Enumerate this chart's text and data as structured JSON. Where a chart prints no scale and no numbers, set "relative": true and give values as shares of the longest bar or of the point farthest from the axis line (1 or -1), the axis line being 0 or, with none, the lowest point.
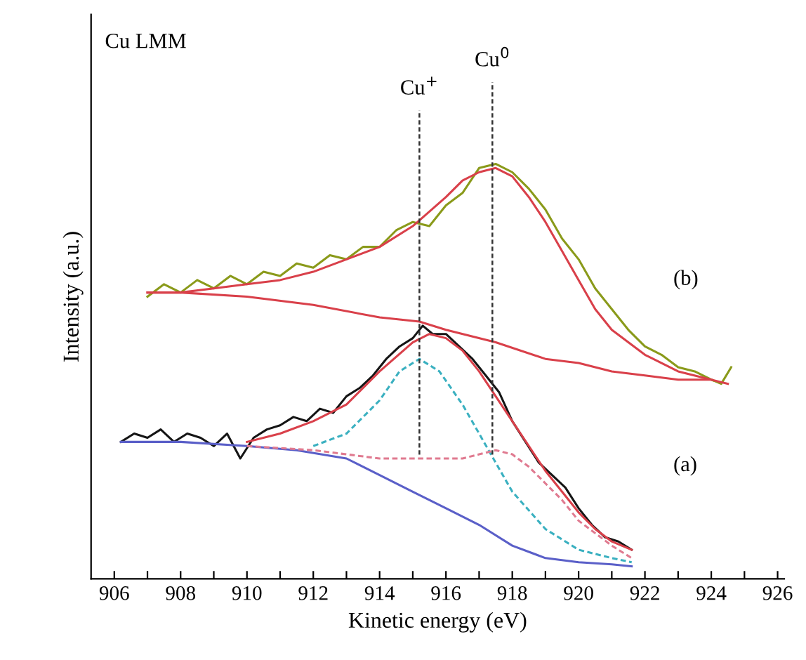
{
  "chart_data": {
    "type": "line",
    "relative": true,
    "xlabel": "Kinetic energy (eV)",
    "ylabel": "Intensity (a.u.)",
    "xlim": [
      905.3,
      926.2
    ],
    "xticks": [
      906,
      {
        "value": 907,
        "label": null
      },
      908,
      {
        "value": 909,
        "label": null
      },
      910,
      {
        "value": 911,
        "label": null
      },
      912,
      {
        "value": 913,
        "label": null
      },
      914,
      {
        "value": 915,
        "label": null
      },
      916,
      {
        "value": 917,
        "label": null
      },
      918,
      {
        "value": 919,
        "label": null
      },
      920,
      {
        "value": 921,
        "label": null
      },
      922,
      {
        "value": 923,
        "label": null
      },
      924,
      {
        "value": 925,
        "label": null
      },
      926
    ],
    "tick_labels": "x",
    "grid": false,
    "legend": false,
    "marker": "none",
    "series": [
      {
        "color": "#8a9a1a",
        "line_style": "solid",
        "x": [
          907,
          907.5,
          908,
          908.5,
          909,
          909.5,
          910,
          910.5,
          911,
          911.5,
          912,
          912.5,
          913,
          913.5,
          914,
          914.5,
          915,
          915.5,
          916,
          916.5,
          917,
          917.5,
          918,
          918.5,
          919,
          919.5,
          920,
          920.5,
          921,
          921.5,
          922,
          922.5,
          923,
          923.5,
          924,
          924.3,
          924.6
        ],
        "values": [
          0.68,
          0.71,
          0.69,
          0.72,
          0.7,
          0.73,
          0.71,
          0.74,
          0.73,
          0.76,
          0.75,
          0.78,
          0.77,
          0.8,
          0.8,
          0.84,
          0.86,
          0.85,
          0.9,
          0.93,
          0.99,
          1.0,
          0.98,
          0.94,
          0.89,
          0.82,
          0.77,
          0.7,
          0.65,
          0.6,
          0.56,
          0.54,
          0.51,
          0.5,
          0.48,
          0.47,
          0.51
        ]
      },
      {
        "color": "#d9404a",
        "line_style": "solid",
        "x": [
          907,
          908,
          909,
          910,
          911,
          912,
          913,
          914,
          915,
          916,
          916.5,
          917,
          917.5,
          918,
          918.5,
          919,
          919.5,
          920,
          920.5,
          921,
          922,
          923,
          924,
          924.5
        ],
        "values": [
          0.69,
          0.69,
          0.7,
          0.71,
          0.72,
          0.74,
          0.77,
          0.8,
          0.85,
          0.92,
          0.96,
          0.98,
          0.99,
          0.97,
          0.92,
          0.86,
          0.79,
          0.72,
          0.65,
          0.6,
          0.54,
          0.5,
          0.48,
          0.47
        ]
      },
      {
        "color": "#d9404a",
        "line_style": "solid",
        "x": [
          907,
          908,
          910,
          912,
          914,
          915.2,
          916,
          917.5,
          919,
          920,
          921,
          922,
          923,
          924
        ],
        "values": [
          0.69,
          0.69,
          0.68,
          0.66,
          0.63,
          0.62,
          0.6,
          0.57,
          0.53,
          0.52,
          0.5,
          0.49,
          0.48,
          0.48
        ]
      },
      {
        "color": "#151515",
        "line_style": "solid",
        "x": [
          906.2,
          906.6,
          907,
          907.4,
          907.8,
          908.2,
          908.6,
          909,
          909.4,
          909.8,
          910.2,
          910.6,
          911,
          911.4,
          911.8,
          912.2,
          912.6,
          913,
          913.4,
          913.8,
          914.2,
          914.6,
          915,
          915.3,
          915.6,
          916,
          916.4,
          916.8,
          917.2,
          917.6,
          918,
          918.4,
          918.8,
          919.2,
          919.6,
          920,
          920.4,
          920.8,
          921.2,
          921.6
        ],
        "values": [
          0.33,
          0.35,
          0.34,
          0.36,
          0.33,
          0.35,
          0.34,
          0.32,
          0.35,
          0.29,
          0.34,
          0.36,
          0.37,
          0.39,
          0.38,
          0.41,
          0.4,
          0.44,
          0.46,
          0.49,
          0.53,
          0.56,
          0.58,
          0.61,
          0.59,
          0.59,
          0.56,
          0.53,
          0.49,
          0.45,
          0.38,
          0.33,
          0.28,
          0.25,
          0.22,
          0.17,
          0.13,
          0.1,
          0.09,
          0.07
        ]
      },
      {
        "color": "#d9404a",
        "line_style": "solid",
        "x": [
          910,
          911,
          912,
          913,
          914,
          915,
          915.5,
          916,
          916.5,
          917,
          917.5,
          918,
          918.5,
          919,
          919.5,
          920,
          920.5,
          921,
          921.6
        ],
        "values": [
          0.33,
          0.35,
          0.38,
          0.42,
          0.5,
          0.57,
          0.59,
          0.58,
          0.55,
          0.5,
          0.44,
          0.38,
          0.32,
          0.26,
          0.21,
          0.16,
          0.12,
          0.09,
          0.07
        ]
      },
      {
        "color": "#5a5fc8",
        "line_style": "solid",
        "x": [
          906.2,
          908,
          910,
          911.5,
          913,
          914,
          915,
          916,
          917,
          918,
          919,
          920,
          921,
          921.6
        ],
        "values": [
          0.33,
          0.33,
          0.32,
          0.31,
          0.29,
          0.25,
          0.21,
          0.17,
          0.13,
          0.08,
          0.05,
          0.04,
          0.035,
          0.03
        ]
      },
      {
        "color": "#3ab0c0",
        "line_style": "dashed",
        "x": [
          912,
          913,
          914,
          914.6,
          915.2,
          915.8,
          916.5,
          917,
          917.5,
          918,
          919,
          920,
          921,
          921.6
        ],
        "values": [
          0.32,
          0.35,
          0.43,
          0.5,
          0.53,
          0.5,
          0.42,
          0.35,
          0.28,
          0.21,
          0.12,
          0.07,
          0.05,
          0.04
        ]
      },
      {
        "color": "#e07a90",
        "line_style": "dashed",
        "x": [
          910,
          912,
          913,
          914,
          915,
          916,
          916.5,
          917,
          917.5,
          918,
          918.5,
          919,
          919.5,
          920,
          920.5,
          921,
          921.6
        ],
        "values": [
          0.32,
          0.31,
          0.3,
          0.29,
          0.29,
          0.29,
          0.29,
          0.3,
          0.31,
          0.3,
          0.27,
          0.23,
          0.19,
          0.14,
          0.11,
          0.08,
          0.05
        ]
      }
    ],
    "ref_lines": [
      {
        "axis": "x",
        "value": 915.2,
        "label": "Cu$^{+}$",
        "color": "#333333",
        "line_style": "dashed"
      },
      {
        "axis": "x",
        "value": 917.4,
        "label": "Cu$^{0}$",
        "color": "#333333",
        "line_style": "dashed"
      }
    ],
    "annotations": [
      "Cu LMM",
      "(b)",
      "(a)"
    ]
  }
}
